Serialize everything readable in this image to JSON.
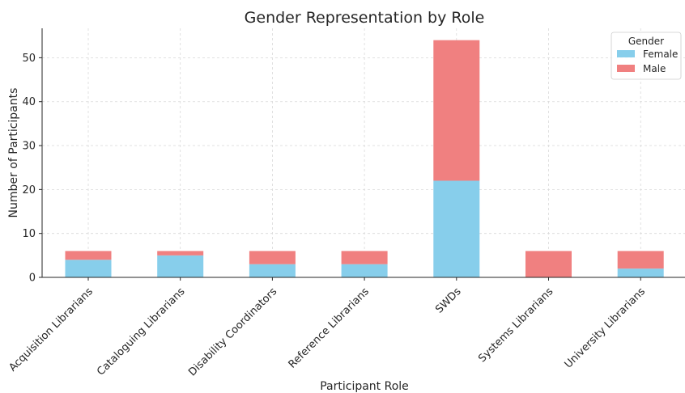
{
  "chart_data": {
    "type": "bar",
    "stacked": true,
    "title": "Gender Representation by Role",
    "xlabel": "Participant Role",
    "ylabel": "Number of Participants",
    "categories": [
      "Acquisition Librarians",
      "Cataloguing Librarians",
      "Disability Coordinators",
      "Reference Librarians",
      "SWDs",
      "Systems Librarians",
      "University Librarians"
    ],
    "series": [
      {
        "name": "Female",
        "color": "#87ceeb",
        "values": [
          4,
          5,
          3,
          3,
          22,
          0,
          2
        ]
      },
      {
        "name": "Male",
        "color": "#f08080",
        "values": [
          2,
          1,
          3,
          3,
          32,
          6,
          4
        ]
      }
    ],
    "ylim": [
      0,
      56.7
    ],
    "yticks": [
      0,
      10,
      20,
      30,
      40,
      50
    ],
    "grid": true,
    "legend": {
      "title": "Gender",
      "placement": "top-right"
    }
  }
}
